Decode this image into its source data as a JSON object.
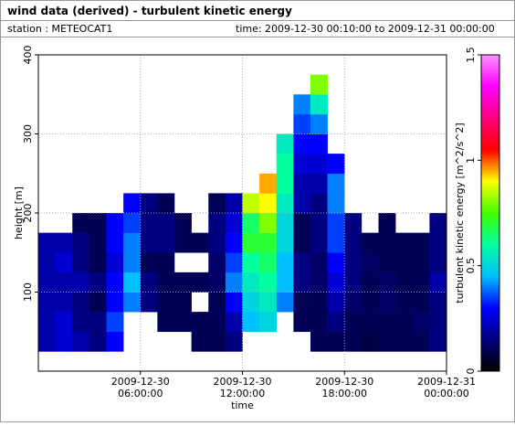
{
  "header": {
    "title": "wind data (derived) - turbulent kinetic energy",
    "station": "station : METEOCAT1",
    "time": "time: 2009-12-30 00:10:00 to 2009-12-31 00:00:00"
  },
  "chart_data": {
    "type": "heatmap",
    "x_label": "time",
    "y_label": "height [m]",
    "colorbar_label": "turbulent kinetic energy [m^2/s^2]",
    "xlim": [
      "2009-12-30 00:00:00",
      "2009-12-31 00:00:00"
    ],
    "xticks": [
      "2009-12-30 06:00:00",
      "2009-12-30 12:00:00",
      "2009-12-30 18:00:00",
      "2009-12-31 00:00:00"
    ],
    "ylim": [
      0,
      400
    ],
    "yticks": [
      100,
      200,
      300,
      400
    ],
    "clim": [
      0,
      1.5
    ],
    "cticks": [
      0,
      0.5,
      1,
      1.5
    ],
    "colormap": [
      "#000000",
      "#000080",
      "#0000ff",
      "#00c0ff",
      "#00ffa0",
      "#40ff00",
      "#ffff00",
      "#ff0000",
      "#ff0080",
      "#ff00ff",
      "#ff90ff"
    ],
    "grid": true,
    "x_edges": [
      "2009-12-30 00:00:00",
      "2009-12-30 01:00:00",
      "2009-12-30 02:00:00",
      "2009-12-30 03:00:00",
      "2009-12-30 04:00:00",
      "2009-12-30 05:00:00",
      "2009-12-30 06:00:00",
      "2009-12-30 07:00:00",
      "2009-12-30 08:00:00",
      "2009-12-30 09:00:00",
      "2009-12-30 10:00:00",
      "2009-12-30 11:00:00",
      "2009-12-30 12:00:00",
      "2009-12-30 13:00:00",
      "2009-12-30 14:00:00",
      "2009-12-30 15:00:00",
      "2009-12-30 16:00:00",
      "2009-12-30 17:00:00",
      "2009-12-30 18:00:00",
      "2009-12-30 19:00:00",
      "2009-12-30 20:00:00",
      "2009-12-30 21:00:00",
      "2009-12-30 22:00:00",
      "2009-12-30 23:00:00",
      "2009-12-31 00:00:00"
    ],
    "y_edges": [
      25,
      50,
      75,
      100,
      125,
      150,
      175,
      200,
      225,
      250,
      275,
      300,
      325,
      350,
      375
    ],
    "values": [
      [
        0.2,
        0.2,
        0.2,
        0.2,
        0.2,
        0.2,
        null,
        null,
        null,
        null,
        null,
        null,
        null,
        null
      ],
      [
        0.25,
        0.25,
        0.2,
        0.2,
        0.25,
        0.2,
        null,
        null,
        null,
        null,
        null,
        null,
        null,
        null
      ],
      [
        0.2,
        0.15,
        0.15,
        0.2,
        0.15,
        0.15,
        0.1,
        null,
        null,
        null,
        null,
        null,
        null,
        null
      ],
      [
        0.15,
        0.15,
        0.1,
        0.15,
        0.1,
        0.1,
        0.1,
        null,
        null,
        null,
        null,
        null,
        null,
        null
      ],
      [
        0.3,
        0.35,
        0.3,
        0.3,
        0.25,
        0.3,
        0.3,
        null,
        null,
        null,
        null,
        null,
        null,
        null
      ],
      [
        null,
        null,
        0.4,
        0.45,
        0.4,
        0.4,
        0.35,
        0.3,
        null,
        null,
        null,
        null,
        null,
        null
      ],
      [
        null,
        null,
        0.15,
        0.15,
        0.1,
        0.15,
        0.15,
        0.15,
        null,
        null,
        null,
        null,
        null,
        null
      ],
      [
        null,
        0.1,
        0.1,
        0.1,
        0.1,
        0.15,
        0.15,
        0.1,
        null,
        null,
        null,
        null,
        null,
        null
      ],
      [
        null,
        0.1,
        0.1,
        0.1,
        null,
        0.1,
        0.1,
        null,
        null,
        null,
        null,
        null,
        null,
        null
      ],
      [
        0.1,
        0.1,
        null,
        0.1,
        null,
        0.1,
        null,
        null,
        null,
        null,
        null,
        null,
        null,
        null
      ],
      [
        0.1,
        0.1,
        0.1,
        0.12,
        0.12,
        0.15,
        0.15,
        0.1,
        null,
        null,
        null,
        null,
        null,
        null
      ],
      [
        0.15,
        0.2,
        0.3,
        0.4,
        0.35,
        0.3,
        0.25,
        0.2,
        null,
        null,
        null,
        null,
        null,
        null
      ],
      [
        null,
        0.45,
        0.5,
        0.55,
        0.6,
        0.7,
        0.65,
        0.85,
        null,
        null,
        null,
        null,
        null,
        null
      ],
      [
        null,
        0.5,
        0.55,
        0.6,
        0.65,
        0.7,
        0.8,
        0.9,
        0.95,
        null,
        null,
        null,
        null,
        null
      ],
      [
        null,
        null,
        0.4,
        0.45,
        0.45,
        0.5,
        0.5,
        0.55,
        0.6,
        0.6,
        0.55,
        null,
        null,
        null
      ],
      [
        null,
        0.1,
        0.1,
        0.15,
        0.15,
        0.1,
        0.1,
        0.2,
        0.2,
        0.25,
        0.3,
        0.35,
        0.4,
        null
      ],
      [
        0.1,
        0.1,
        0.1,
        0.12,
        0.12,
        0.15,
        0.15,
        0.15,
        0.2,
        0.25,
        0.3,
        0.4,
        0.55,
        0.8
      ],
      [
        0.1,
        0.15,
        0.2,
        0.25,
        0.3,
        0.35,
        0.35,
        0.4,
        0.4,
        0.3,
        null,
        null,
        null,
        null
      ],
      [
        0.1,
        0.1,
        0.12,
        0.15,
        0.15,
        0.15,
        0.15,
        null,
        null,
        null,
        null,
        null,
        null,
        null
      ],
      [
        0.08,
        0.1,
        0.1,
        0.1,
        0.12,
        0.1,
        null,
        null,
        null,
        null,
        null,
        null,
        null,
        null
      ],
      [
        0.1,
        0.1,
        0.12,
        0.12,
        0.1,
        0.1,
        0.1,
        null,
        null,
        null,
        null,
        null,
        null,
        null
      ],
      [
        0.1,
        0.1,
        0.1,
        0.1,
        0.1,
        0.1,
        null,
        null,
        null,
        null,
        null,
        null,
        null,
        null
      ],
      [
        0.1,
        0.12,
        0.1,
        0.1,
        0.1,
        0.1,
        null,
        null,
        null,
        null,
        null,
        null,
        null,
        null
      ],
      [
        0.15,
        0.15,
        0.15,
        0.2,
        0.15,
        0.15,
        0.15,
        null,
        null,
        null,
        null,
        null,
        null,
        null
      ]
    ]
  }
}
